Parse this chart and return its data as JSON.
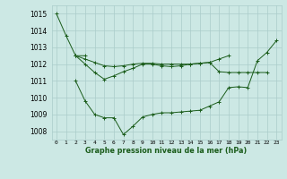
{
  "title": "Graphe pression niveau de la mer (hPa)",
  "x_labels": [
    "0",
    "1",
    "2",
    "3",
    "4",
    "5",
    "6",
    "7",
    "8",
    "9",
    "10",
    "11",
    "12",
    "13",
    "14",
    "15",
    "16",
    "17",
    "18",
    "19",
    "20",
    "21",
    "22",
    "23"
  ],
  "ylim": [
    1007.5,
    1015.5
  ],
  "xlim": [
    -0.5,
    23.5
  ],
  "yticks": [
    1008,
    1009,
    1010,
    1011,
    1012,
    1013,
    1014,
    1015
  ],
  "bg_color": "#cce8e4",
  "grid_color": "#aaccca",
  "line_color": "#1a5c1a",
  "series": [
    [
      1015.0,
      1013.7,
      1012.5,
      1012.5,
      null,
      null,
      null,
      null,
      null,
      null,
      null,
      null,
      null,
      null,
      null,
      null,
      null,
      null,
      null,
      null,
      null,
      null,
      null,
      null
    ],
    [
      null,
      null,
      1012.5,
      1012.3,
      1012.1,
      1011.9,
      1011.85,
      1011.9,
      1012.0,
      1012.05,
      1012.05,
      1012.0,
      1012.0,
      1012.0,
      1012.0,
      1012.05,
      1012.1,
      1011.55,
      1011.5,
      1011.5,
      1011.5,
      1011.5,
      1011.5,
      null
    ],
    [
      null,
      null,
      1012.5,
      1012.0,
      1011.5,
      1011.1,
      1011.3,
      1011.55,
      1011.75,
      1012.0,
      1012.0,
      1011.9,
      1011.85,
      1011.9,
      1012.0,
      1012.05,
      1012.1,
      1012.3,
      1012.5,
      null,
      null,
      null,
      null,
      null
    ],
    [
      null,
      null,
      1011.0,
      1009.8,
      1009.0,
      1008.8,
      1008.8,
      1007.8,
      1008.3,
      1008.85,
      1009.0,
      1009.1,
      1009.1,
      1009.15,
      1009.2,
      1009.25,
      1009.5,
      1009.75,
      1010.6,
      1010.65,
      1010.6,
      1012.2,
      1012.7,
      1013.4
    ]
  ]
}
